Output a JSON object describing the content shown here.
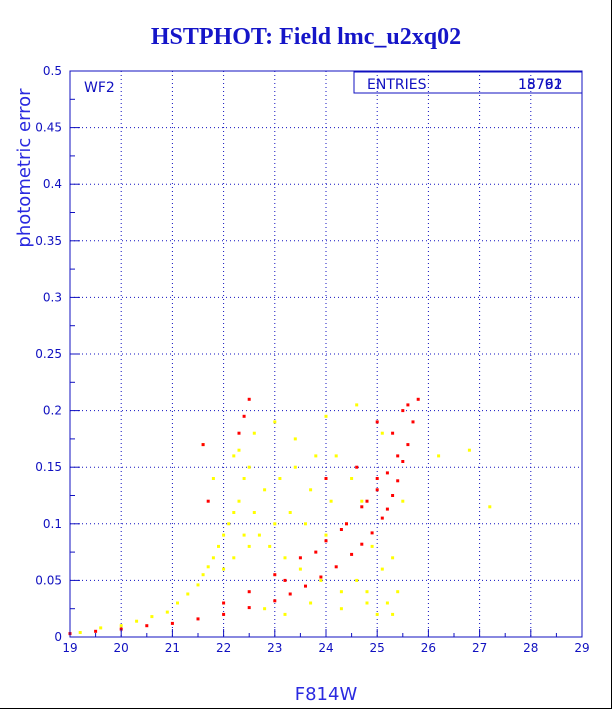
{
  "chart_data": {
    "type": "scatter",
    "title": "HSTPHOT: Field lmc_u2xq02",
    "xlabel": "F814W",
    "ylabel": "photometric error",
    "xlim": [
      19,
      29
    ],
    "ylim": [
      0,
      0.5
    ],
    "x_ticks": [
      "19",
      "20",
      "21",
      "22",
      "23",
      "24",
      "25",
      "26",
      "27",
      "28",
      "29"
    ],
    "y_ticks": [
      "0",
      "0.05",
      "0.1",
      "0.15",
      "0.2",
      "0.25",
      "0.3",
      "0.35",
      "0.4",
      "0.45",
      "0.5"
    ],
    "grid": true,
    "chip_label": "WF2",
    "stats_box": {
      "label": "ENTRIES",
      "value_upper": "18791",
      "value_lower": "15762"
    },
    "series": [
      {
        "color": "#ffff00",
        "x": [
          19.2,
          19.6,
          20.0,
          20.3,
          20.6,
          20.9,
          21.1,
          21.3,
          21.5,
          21.6,
          21.7,
          21.8,
          21.9,
          22.0,
          22.0,
          22.1,
          22.2,
          22.2,
          22.3,
          22.4,
          22.4,
          22.5,
          22.5,
          22.6,
          22.7,
          22.8,
          22.9,
          23.0,
          23.1,
          23.2,
          23.3,
          23.4,
          23.5,
          23.6,
          23.7,
          23.8,
          23.9,
          24.0,
          24.1,
          24.2,
          24.3,
          24.4,
          24.5,
          24.6,
          24.7,
          24.8,
          24.9,
          25.0,
          25.1,
          25.2,
          25.3,
          25.4,
          21.8,
          22.3,
          22.6,
          23.0,
          23.4,
          24.0,
          24.6,
          25.1,
          25.5,
          26.2,
          26.8,
          27.2,
          21.6,
          22.2,
          22.8,
          23.2,
          23.7,
          24.3,
          24.8,
          25.3
        ],
        "y": [
          0.004,
          0.008,
          0.01,
          0.014,
          0.018,
          0.022,
          0.03,
          0.038,
          0.046,
          0.055,
          0.062,
          0.07,
          0.08,
          0.09,
          0.06,
          0.1,
          0.11,
          0.07,
          0.12,
          0.09,
          0.14,
          0.08,
          0.15,
          0.11,
          0.09,
          0.13,
          0.08,
          0.1,
          0.14,
          0.07,
          0.11,
          0.15,
          0.06,
          0.1,
          0.13,
          0.16,
          0.05,
          0.09,
          0.12,
          0.16,
          0.04,
          0.1,
          0.14,
          0.05,
          0.12,
          0.03,
          0.08,
          0.02,
          0.06,
          0.03,
          0.02,
          0.04,
          0.14,
          0.165,
          0.18,
          0.19,
          0.175,
          0.195,
          0.205,
          0.18,
          0.12,
          0.16,
          0.165,
          0.115,
          0.17,
          0.16,
          0.025,
          0.02,
          0.03,
          0.025,
          0.04,
          0.07
        ]
      },
      {
        "color": "#ff0000",
        "x": [
          19.0,
          19.5,
          20.0,
          20.5,
          21.0,
          21.5,
          22.0,
          22.5,
          23.0,
          23.3,
          23.6,
          23.9,
          24.2,
          24.5,
          24.7,
          24.9,
          25.1,
          25.2,
          25.3,
          25.4,
          25.5,
          25.6,
          25.7,
          25.8,
          22.0,
          22.5,
          23.0,
          23.5,
          24.0,
          24.4,
          24.8,
          25.0,
          25.2,
          25.4,
          23.2,
          23.8,
          24.3,
          24.7,
          25.0,
          25.3,
          25.6,
          22.3,
          22.4,
          22.5,
          21.6,
          21.7,
          24.0,
          24.6,
          25.0,
          25.5
        ],
        "y": [
          0.003,
          0.005,
          0.007,
          0.01,
          0.012,
          0.016,
          0.02,
          0.026,
          0.032,
          0.038,
          0.045,
          0.053,
          0.062,
          0.073,
          0.082,
          0.092,
          0.105,
          0.113,
          0.125,
          0.138,
          0.155,
          0.17,
          0.19,
          0.21,
          0.03,
          0.04,
          0.055,
          0.07,
          0.085,
          0.1,
          0.12,
          0.13,
          0.145,
          0.16,
          0.05,
          0.075,
          0.095,
          0.115,
          0.14,
          0.18,
          0.205,
          0.18,
          0.195,
          0.21,
          0.17,
          0.12,
          0.14,
          0.15,
          0.19,
          0.2
        ]
      }
    ]
  }
}
